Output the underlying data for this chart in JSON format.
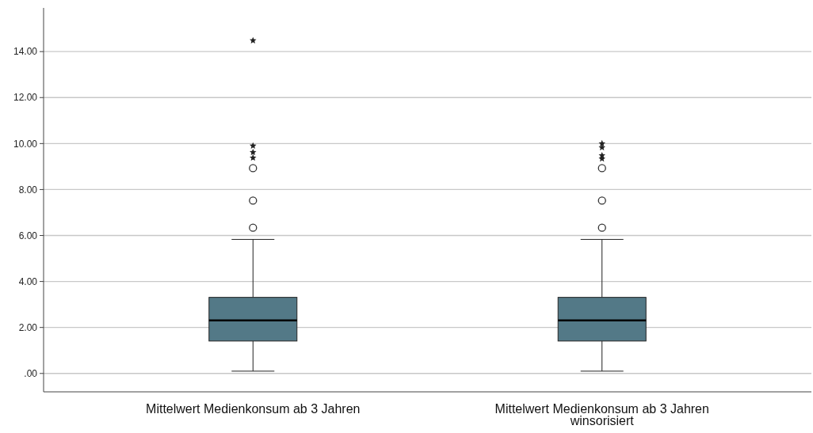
{
  "chart_data": {
    "type": "box",
    "categories": [
      "Mittelwert Medienkonsum ab 3 Jahren",
      "Mittelwert Medienkonsum ab 3 Jahren winsorisiert"
    ],
    "boxes": [
      {
        "low": 0.1,
        "q1": 1.41,
        "median": 2.31,
        "q3": 3.31,
        "high": 5.83,
        "outliers": [
          6.34,
          7.52,
          8.93,
          9.38,
          9.62,
          9.9,
          14.48
        ]
      },
      {
        "low": 0.1,
        "q1": 1.41,
        "median": 2.31,
        "q3": 3.31,
        "high": 5.83,
        "outliers": [
          6.34,
          7.52,
          8.93,
          9.34,
          9.48,
          9.83,
          10.0
        ]
      }
    ],
    "color": "#537987",
    "ylim": [
      -0.8,
      15.9
    ],
    "yticks": [
      {
        "value": 0,
        "label": ".00"
      },
      {
        "value": 2,
        "label": "2.00"
      },
      {
        "value": 4,
        "label": "4.00"
      },
      {
        "value": 6,
        "label": "6.00"
      },
      {
        "value": 8,
        "label": "8.00"
      },
      {
        "value": 10,
        "label": "10.00"
      },
      {
        "value": 12,
        "label": "12.00"
      },
      {
        "value": 14,
        "label": "14.00"
      }
    ],
    "grid": "y"
  }
}
